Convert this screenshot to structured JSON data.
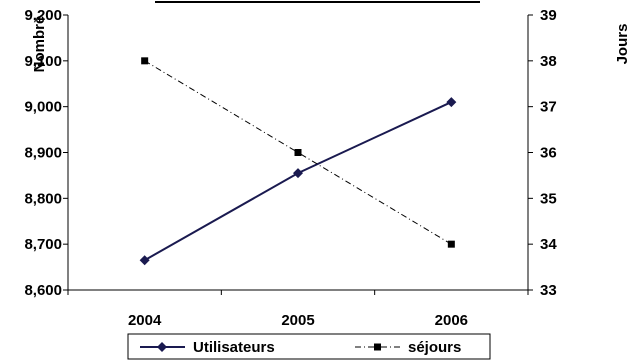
{
  "chart_data": {
    "type": "line",
    "categories": [
      "2004",
      "2005",
      "2006"
    ],
    "series": [
      {
        "name": "Utilisateurs",
        "axis": "left",
        "values": [
          8665,
          8855,
          9010
        ],
        "color": "#1a1a50",
        "line_style": "solid",
        "marker": "diamond"
      },
      {
        "name": "séjours",
        "axis": "right",
        "values": [
          38,
          36,
          34
        ],
        "color": "#000000",
        "line_style": "dash-dot",
        "marker": "square"
      }
    ],
    "y_left": {
      "label": "Nombre",
      "lim": [
        8600,
        9200
      ],
      "ticks": [
        "8,600",
        "8,700",
        "8,800",
        "8,900",
        "9,000",
        "9,100",
        "9,200"
      ]
    },
    "y_right": {
      "label": "Jours",
      "lim": [
        33,
        39
      ],
      "ticks": [
        "33",
        "34",
        "35",
        "36",
        "37",
        "38",
        "39"
      ]
    },
    "x_ticks": [
      "2004",
      "2005",
      "2006"
    ],
    "grid": false,
    "legend": "bottom"
  }
}
